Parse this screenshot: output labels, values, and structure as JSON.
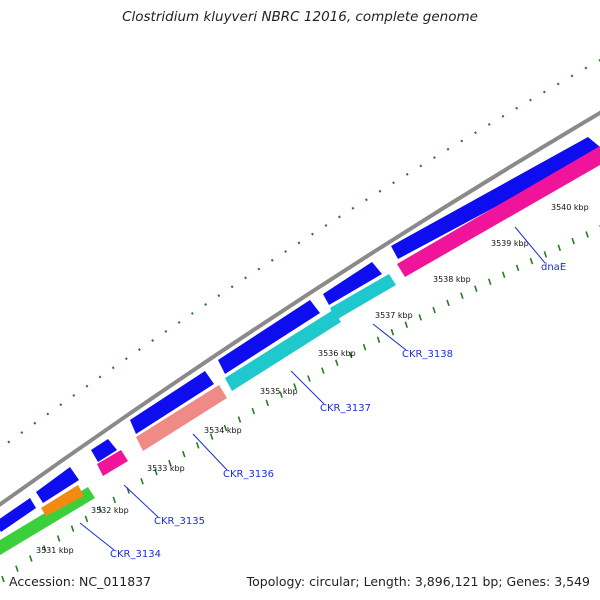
{
  "title": "Clostridium kluyveri NBRC 12016, complete genome",
  "accession": "Accession: NC_011837",
  "summary": "Topology: circular; Length: 3,896,121 bp; Genes: 3,549",
  "colors": {
    "backbone": "#8a8a8a",
    "forward_cds": "#0d0df0",
    "reverse_cds_pink": "#f0149a",
    "reverse_cds_cyan": "#1ec8cc",
    "reverse_cds_salmon": "#ef8a86",
    "reverse_cds_orange": "#f38a12",
    "reverse_cds_green": "#3ccf3c",
    "tick": "#2a7a2a",
    "label": "#1a2fd6"
  },
  "ticks": [
    {
      "label": "3531 kbp",
      "kbp": 3531
    },
    {
      "label": "3532 kbp",
      "kbp": 3532
    },
    {
      "label": "3533 kbp",
      "kbp": 3533
    },
    {
      "label": "3534 kbp",
      "kbp": 3534
    },
    {
      "label": "3535 kbp",
      "kbp": 3535
    },
    {
      "label": "3536 kbp",
      "kbp": 3536
    },
    {
      "label": "3537 kbp",
      "kbp": 3537
    },
    {
      "label": "3538 kbp",
      "kbp": 3538
    },
    {
      "label": "3539 kbp",
      "kbp": 3539
    },
    {
      "label": "3540 kbp",
      "kbp": 3540
    }
  ],
  "genes": [
    {
      "name": "CKR_3134"
    },
    {
      "name": "CKR_3135"
    },
    {
      "name": "CKR_3136"
    },
    {
      "name": "CKR_3137"
    },
    {
      "name": "CKR_3138"
    },
    {
      "name": "dnaE"
    }
  ]
}
